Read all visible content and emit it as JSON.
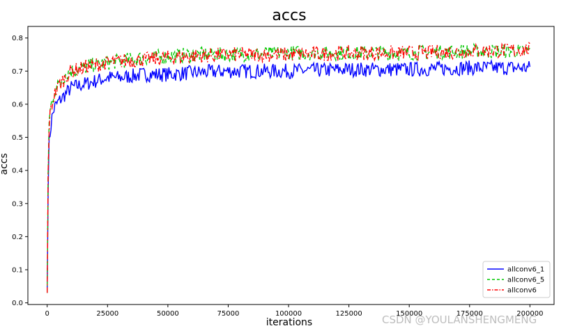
{
  "chart_data": {
    "type": "line",
    "title": "accs",
    "xlabel": "iterations",
    "ylabel": "accs",
    "xlim": [
      -8000,
      210000
    ],
    "ylim": [
      -0.005,
      0.835
    ],
    "xticks": [
      0,
      25000,
      50000,
      75000,
      100000,
      125000,
      150000,
      175000,
      200000
    ],
    "yticks": [
      0.0,
      0.1,
      0.2,
      0.3,
      0.4,
      0.5,
      0.6,
      0.7,
      0.8
    ],
    "grid": false,
    "legend_position": "bottom-right",
    "x": [
      0,
      500,
      1000,
      2000,
      3000,
      5000,
      7500,
      10000,
      15000,
      20000,
      25000,
      30000,
      40000,
      50000,
      60000,
      75000,
      100000,
      125000,
      150000,
      175000,
      200000
    ],
    "series": [
      {
        "name": "allconv6_1",
        "color": "#0000ff",
        "dash": "solid",
        "values": [
          0.03,
          0.45,
          0.5,
          0.56,
          0.59,
          0.61,
          0.63,
          0.65,
          0.66,
          0.67,
          0.68,
          0.68,
          0.69,
          0.69,
          0.695,
          0.7,
          0.7,
          0.705,
          0.705,
          0.71,
          0.71
        ]
      },
      {
        "name": "allconv6_5",
        "color": "#00c800",
        "dash": "6,4",
        "values": [
          0.03,
          0.5,
          0.57,
          0.61,
          0.64,
          0.66,
          0.69,
          0.7,
          0.71,
          0.72,
          0.725,
          0.73,
          0.74,
          0.745,
          0.75,
          0.75,
          0.755,
          0.755,
          0.755,
          0.76,
          0.76
        ]
      },
      {
        "name": "allconv6",
        "color": "#ff0000",
        "dash": "8,3,2,3",
        "values": [
          0.03,
          0.49,
          0.56,
          0.6,
          0.63,
          0.66,
          0.68,
          0.7,
          0.71,
          0.72,
          0.725,
          0.73,
          0.735,
          0.74,
          0.745,
          0.75,
          0.75,
          0.755,
          0.755,
          0.76,
          0.765
        ]
      }
    ]
  },
  "watermark": "CSDN @YOULANSHENGMENG"
}
